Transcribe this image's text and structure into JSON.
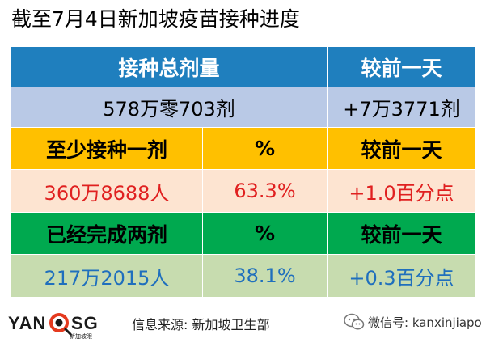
{
  "title": "截至7月4日新加坡疫苗接种进度",
  "table": {
    "total": {
      "header": "接种总剂量",
      "change_header": "较前一天",
      "value": "578万零703剂",
      "change": "+7万3771剂"
    },
    "at_least_one": {
      "header": "至少接种一剂",
      "pct_header": "%",
      "change_header": "较前一天",
      "value": "360万8688人",
      "pct": "63.3%",
      "change": "+1.0百分点"
    },
    "completed": {
      "header": "已经完成两剂",
      "pct_header": "%",
      "change_header": "较前一天",
      "value": "217万2015人",
      "pct": "38.1%",
      "change": "+0.3百分点"
    }
  },
  "footer": {
    "logo_text": "YANOSG",
    "logo_subtext": "新加坡眼",
    "source": "信息来源:  新加坡卫生部",
    "wechat": "微信号: kanxinjiapo"
  },
  "colors": {
    "header_blue": "#1f7fbe",
    "value_blue": "#b9c9e6",
    "header_yellow": "#ffc000",
    "value_peach": "#fde4d1",
    "header_green": "#00a94f",
    "value_green": "#c7dcaf",
    "red_text": "#e02020",
    "blue_text": "#1f6fbd"
  },
  "icons": [
    "logo-eye-icon",
    "wechat-icon"
  ]
}
